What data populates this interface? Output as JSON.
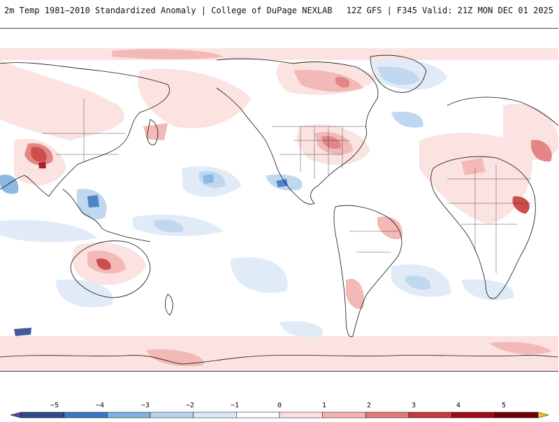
{
  "header": {
    "title": "2m Temp 1981–2010 Standardized Anomaly | College of DuPage NEXLAB",
    "run_info": "12Z GFS | F345 Valid: 21Z MON DEC 01 2025"
  },
  "legend": {
    "ticks": [
      "−5",
      "−4",
      "−3",
      "−2",
      "−1",
      "0",
      "1",
      "2",
      "3",
      "4",
      "5"
    ],
    "colors": [
      "#6a3fa0",
      "#2c4a8c",
      "#3a78c4",
      "#7fb2e0",
      "#b9d4ee",
      "#dde9f7",
      "#ffffff",
      "#fbe0df",
      "#f2b2b0",
      "#e07a78",
      "#c83a3a",
      "#a10a16",
      "#6e0008",
      "#f4c21a"
    ]
  },
  "map": {
    "projection": "cylindrical, Pacific-centered",
    "variable": "2m temperature standardized anomaly"
  }
}
